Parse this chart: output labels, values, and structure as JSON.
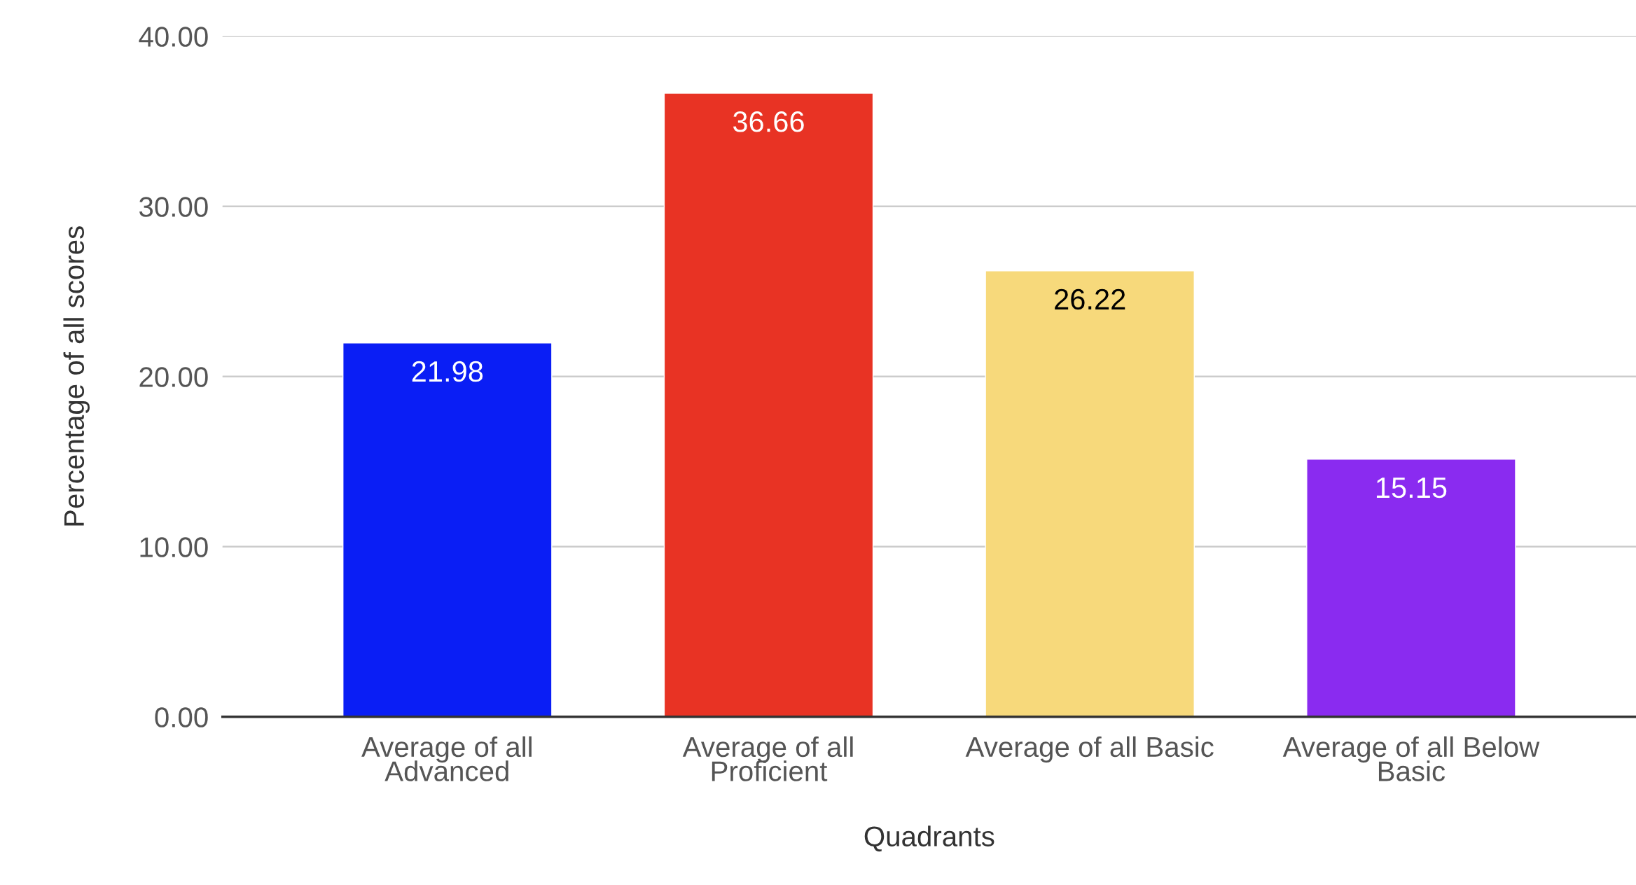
{
  "chart_data": {
    "type": "bar",
    "categories": [
      "Average of all Advanced",
      "Average of all Proficient",
      "Average of all Basic",
      "Average of all Below Basic"
    ],
    "values": [
      21.98,
      36.66,
      26.22,
      15.15
    ],
    "colors": [
      "#0a1ef5",
      "#e83324",
      "#f7d97b",
      "#8a2bf0"
    ],
    "xlabel": "Quadrants",
    "ylabel": "Percentage of all scores",
    "ylim": [
      0,
      40
    ],
    "yticks": [
      {
        "value": 0,
        "label": "0.00"
      },
      {
        "value": 10,
        "label": "10.00"
      },
      {
        "value": 20,
        "label": "20.00"
      },
      {
        "value": 30,
        "label": "30.00"
      },
      {
        "value": 40,
        "label": "40.00"
      }
    ],
    "grid": "y",
    "data_labels": true
  }
}
